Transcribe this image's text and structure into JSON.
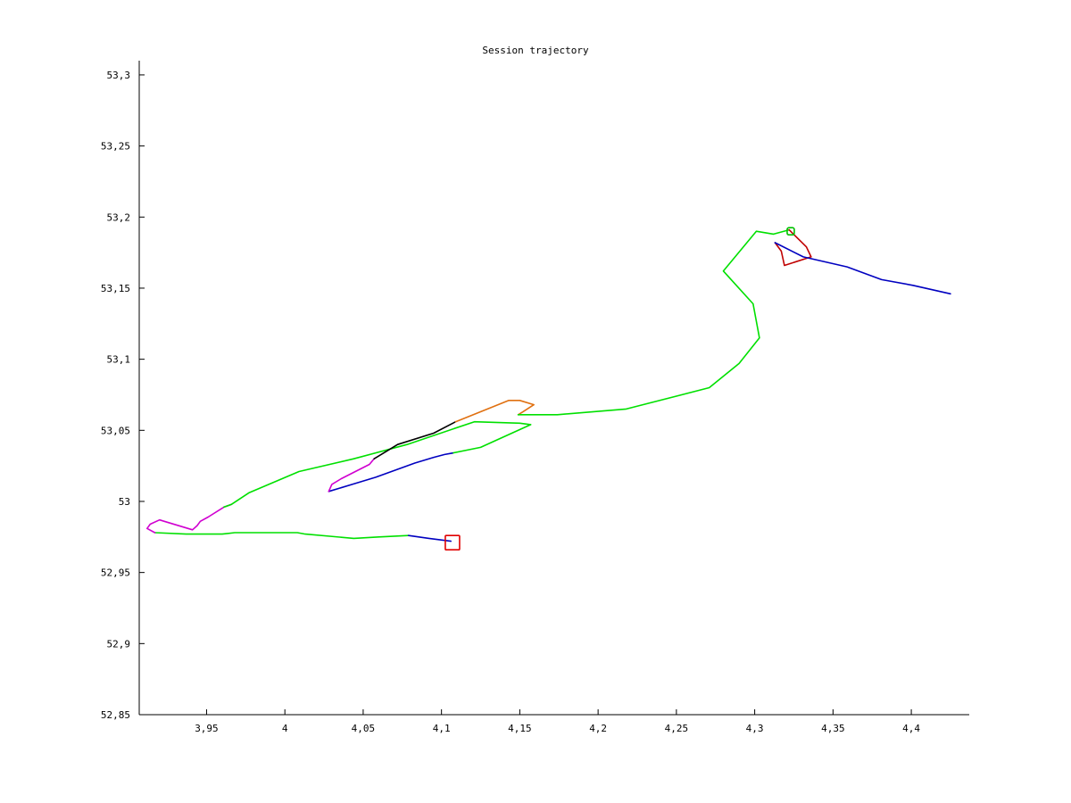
{
  "chart_data": {
    "type": "line",
    "title": "Session trajectory",
    "xlabel": "",
    "ylabel": "",
    "xlim": [
      3.907,
      4.437
    ],
    "ylim": [
      52.85,
      53.31
    ],
    "xticks": [
      "3,95",
      "4",
      "4,05",
      "4,1",
      "4,15",
      "4,2",
      "4,25",
      "4,3",
      "4,35",
      "4,4"
    ],
    "xtick_values": [
      3.95,
      4.0,
      4.05,
      4.1,
      4.15,
      4.2,
      4.25,
      4.3,
      4.35,
      4.4
    ],
    "yticks": [
      "52,85",
      "52,9",
      "52,95",
      "53",
      "53,05",
      "53,1",
      "53,15",
      "53,2",
      "53,25",
      "53,3"
    ],
    "ytick_values": [
      52.85,
      52.9,
      52.95,
      53.0,
      53.05,
      53.1,
      53.15,
      53.2,
      53.25,
      53.3
    ],
    "grid": false,
    "series": [
      {
        "color": "#00e000",
        "points": [
          [
            3.917,
            52.978
          ],
          [
            3.937,
            52.977
          ],
          [
            3.96,
            52.977
          ],
          [
            3.968,
            52.978
          ],
          [
            4.0,
            52.978
          ],
          [
            4.008,
            52.978
          ],
          [
            4.013,
            52.977
          ],
          [
            4.044,
            52.974
          ],
          [
            4.06,
            52.975
          ],
          [
            4.079,
            52.976
          ]
        ]
      },
      {
        "color": "#0000c0",
        "points": [
          [
            4.079,
            52.976
          ],
          [
            4.092,
            52.974
          ],
          [
            4.106,
            52.972
          ]
        ]
      },
      {
        "color": "#d000d0",
        "points": [
          [
            3.966,
            52.998
          ],
          [
            3.961,
            52.996
          ],
          [
            3.951,
            52.989
          ],
          [
            3.946,
            52.986
          ],
          [
            3.944,
            52.983
          ],
          [
            3.941,
            52.98
          ],
          [
            3.923,
            52.986
          ],
          [
            3.92,
            52.987
          ],
          [
            3.914,
            52.984
          ],
          [
            3.912,
            52.981
          ],
          [
            3.917,
            52.978
          ]
        ]
      },
      {
        "color": "#00e000",
        "points": [
          [
            3.961,
            52.996
          ],
          [
            3.966,
            52.998
          ],
          [
            3.977,
            53.006
          ],
          [
            4.009,
            53.021
          ],
          [
            4.044,
            53.03
          ],
          [
            4.078,
            53.04
          ],
          [
            4.121,
            53.056
          ],
          [
            4.15,
            53.055
          ],
          [
            4.157,
            53.054
          ],
          [
            4.125,
            53.038
          ],
          [
            4.107,
            53.034
          ]
        ]
      },
      {
        "color": "#0000c0",
        "points": [
          [
            4.107,
            53.034
          ],
          [
            4.102,
            53.033
          ],
          [
            4.095,
            53.031
          ],
          [
            4.083,
            53.027
          ],
          [
            4.058,
            53.017
          ],
          [
            4.043,
            53.012
          ],
          [
            4.028,
            53.007
          ]
        ]
      },
      {
        "color": "#d000d0",
        "points": [
          [
            4.028,
            53.007
          ],
          [
            4.03,
            53.012
          ],
          [
            4.036,
            53.016
          ],
          [
            4.054,
            53.026
          ],
          [
            4.057,
            53.03
          ]
        ]
      },
      {
        "color": "#000000",
        "points": [
          [
            4.057,
            53.03
          ],
          [
            4.072,
            53.04
          ],
          [
            4.095,
            53.048
          ],
          [
            4.109,
            53.056
          ]
        ]
      },
      {
        "color": "#e07010",
        "points": [
          [
            4.109,
            53.056
          ],
          [
            4.143,
            53.071
          ],
          [
            4.15,
            53.071
          ],
          [
            4.159,
            53.068
          ],
          [
            4.152,
            53.063
          ],
          [
            4.149,
            53.061
          ]
        ]
      },
      {
        "color": "#00e000",
        "points": [
          [
            4.149,
            53.061
          ],
          [
            4.174,
            53.061
          ],
          [
            4.218,
            53.065
          ],
          [
            4.271,
            53.08
          ],
          [
            4.29,
            53.097
          ],
          [
            4.303,
            53.115
          ],
          [
            4.299,
            53.139
          ],
          [
            4.28,
            53.162
          ],
          [
            4.301,
            53.19
          ],
          [
            4.312,
            53.188
          ],
          [
            4.322,
            53.191
          ]
        ]
      },
      {
        "color": "#c00000",
        "points": [
          [
            4.322,
            53.191
          ],
          [
            4.333,
            53.179
          ],
          [
            4.336,
            53.172
          ],
          [
            4.319,
            53.166
          ],
          [
            4.317,
            53.176
          ],
          [
            4.313,
            53.182
          ]
        ]
      },
      {
        "color": "#0000c0",
        "points": [
          [
            4.313,
            53.182
          ],
          [
            4.331,
            53.172
          ],
          [
            4.359,
            53.165
          ],
          [
            4.381,
            53.156
          ],
          [
            4.401,
            53.152
          ],
          [
            4.425,
            53.146
          ]
        ]
      }
    ],
    "markers": [
      {
        "shape": "square",
        "color": "#e00000",
        "at": [
          4.107,
          52.971
        ]
      },
      {
        "shape": "square",
        "color": "#00c000",
        "at": [
          4.323,
          53.19
        ]
      }
    ]
  }
}
